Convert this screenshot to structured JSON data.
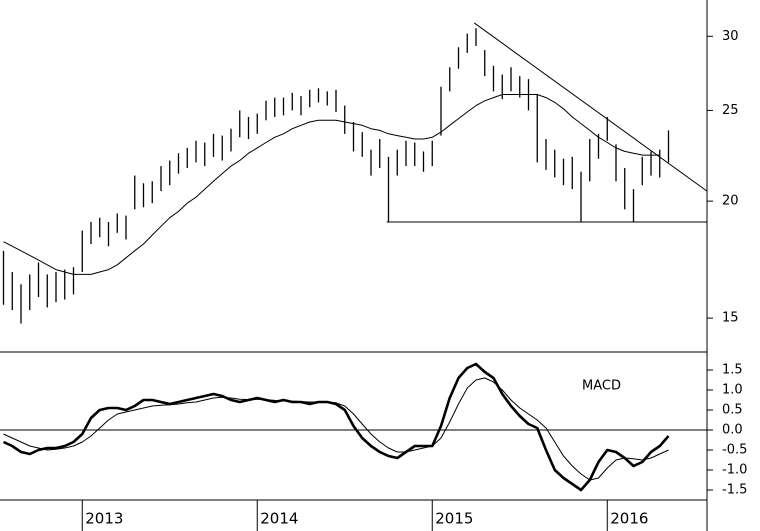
{
  "chart_data": [
    {
      "type": "hilo",
      "log_scale": true,
      "color": "#000000",
      "x": [
        2012.55,
        2012.6,
        2012.65,
        2012.7,
        2012.75,
        2012.8,
        2012.85,
        2012.9,
        2012.95,
        2013.0,
        2013.05,
        2013.1,
        2013.15,
        2013.2,
        2013.25,
        2013.3,
        2013.35,
        2013.4,
        2013.45,
        2013.5,
        2013.55,
        2013.6,
        2013.65,
        2013.7,
        2013.75,
        2013.8,
        2013.85,
        2013.9,
        2013.95,
        2014.0,
        2014.05,
        2014.1,
        2014.15,
        2014.2,
        2014.25,
        2014.3,
        2014.35,
        2014.4,
        2014.45,
        2014.5,
        2014.55,
        2014.6,
        2014.65,
        2014.7,
        2014.75,
        2014.8,
        2014.85,
        2014.9,
        2014.95,
        2015.0,
        2015.05,
        2015.1,
        2015.15,
        2015.2,
        2015.25,
        2015.3,
        2015.35,
        2015.4,
        2015.45,
        2015.5,
        2015.55,
        2015.6,
        2015.65,
        2015.7,
        2015.75,
        2015.8,
        2015.85,
        2015.9,
        2015.95,
        2016.0,
        2016.05,
        2016.1,
        2016.15,
        2016.2,
        2016.25,
        2016.3,
        2016.35
      ],
      "high": [
        17.7,
        16.8,
        16.3,
        16.7,
        17.2,
        16.7,
        16.8,
        16.9,
        17.0,
        18.6,
        19.0,
        19.2,
        19.0,
        19.4,
        19.3,
        21.3,
        20.9,
        21.0,
        21.8,
        22.1,
        22.5,
        22.8,
        23.2,
        23.1,
        23.6,
        23.5,
        23.9,
        25.0,
        24.6,
        24.8,
        25.6,
        25.8,
        25.8,
        26.1,
        25.9,
        26.3,
        26.4,
        26.2,
        26.3,
        25.3,
        24.3,
        23.7,
        22.7,
        23.3,
        22.3,
        22.7,
        23.2,
        23.1,
        22.6,
        23.2,
        26.5,
        27.8,
        29.2,
        30.2,
        30.6,
        29.0,
        27.9,
        27.3,
        27.8,
        27.2,
        27.0,
        26.0,
        23.3,
        22.7,
        22.2,
        22.3,
        21.5,
        23.3,
        23.6,
        24.6,
        23.0,
        21.7,
        20.6,
        22.3,
        22.6,
        22.7,
        23.8
      ],
      "low": [
        15.5,
        15.3,
        14.8,
        15.3,
        15.8,
        15.4,
        15.6,
        15.7,
        15.9,
        16.8,
        18.0,
        18.3,
        17.9,
        18.5,
        18.2,
        19.6,
        19.7,
        19.9,
        20.5,
        20.8,
        21.4,
        21.7,
        22.0,
        21.8,
        22.3,
        22.1,
        22.6,
        23.4,
        23.3,
        23.6,
        24.4,
        24.6,
        24.7,
        25.0,
        24.7,
        25.2,
        25.5,
        25.3,
        24.9,
        23.6,
        22.6,
        22.3,
        21.3,
        21.7,
        19.0,
        21.3,
        21.8,
        21.8,
        21.5,
        21.8,
        23.5,
        26.2,
        27.7,
        28.8,
        29.3,
        27.2,
        26.2,
        25.7,
        26.2,
        25.8,
        25.0,
        22.0,
        21.6,
        21.2,
        20.8,
        20.6,
        19.0,
        21.0,
        22.2,
        23.2,
        21.0,
        19.6,
        19.0,
        20.8,
        21.3,
        21.2,
        22.0
      ],
      "ma": [
        18.1,
        17.9,
        17.7,
        17.5,
        17.3,
        17.1,
        16.9,
        16.8,
        16.7,
        16.7,
        16.7,
        16.8,
        16.9,
        17.1,
        17.4,
        17.7,
        18.0,
        18.4,
        18.8,
        19.2,
        19.5,
        19.9,
        20.2,
        20.6,
        21.0,
        21.4,
        21.8,
        22.1,
        22.5,
        22.8,
        23.1,
        23.4,
        23.6,
        23.9,
        24.1,
        24.3,
        24.4,
        24.4,
        24.4,
        24.3,
        24.2,
        24.1,
        23.9,
        23.8,
        23.6,
        23.5,
        23.4,
        23.3,
        23.3,
        23.4,
        23.7,
        24.1,
        24.5,
        24.9,
        25.3,
        25.6,
        25.8,
        26.0,
        26.0,
        26.0,
        26.0,
        26.0,
        25.8,
        25.5,
        25.1,
        24.6,
        24.2,
        23.8,
        23.4,
        23.1,
        22.8,
        22.6,
        22.5,
        22.4,
        22.4,
        22.4,
        null
      ],
      "trendlines": [
        {
          "x": [
            2015.24,
            2016.57
          ],
          "y": [
            31.0,
            20.5
          ]
        },
        {
          "x": [
            2014.74,
            2016.57
          ],
          "y": [
            19.0,
            19.0
          ]
        }
      ],
      "xlim": [
        2012.53,
        2016.57
      ],
      "xticks": [
        2013,
        2014,
        2015,
        2016
      ],
      "ylim": [
        13.8,
        32.8
      ],
      "yticks": [
        15,
        20,
        25,
        30
      ]
    },
    {
      "type": "line",
      "title": "MACD",
      "series": [
        {
          "color": "#000000",
          "width": 2.6,
          "values": [
            -0.3,
            -0.4,
            -0.55,
            -0.6,
            -0.5,
            -0.45,
            -0.45,
            -0.4,
            -0.3,
            -0.1,
            0.3,
            0.5,
            0.55,
            0.55,
            0.5,
            0.6,
            0.75,
            0.75,
            0.7,
            0.65,
            0.7,
            0.75,
            0.8,
            0.85,
            0.9,
            0.85,
            0.75,
            0.7,
            0.75,
            0.8,
            0.75,
            0.7,
            0.75,
            0.7,
            0.7,
            0.65,
            0.7,
            0.7,
            0.65,
            0.5,
            0.1,
            -0.2,
            -0.4,
            -0.55,
            -0.65,
            -0.7,
            -0.55,
            -0.4,
            -0.4,
            -0.4,
            0.1,
            0.8,
            1.3,
            1.55,
            1.65,
            1.45,
            1.3,
            0.9,
            0.6,
            0.35,
            0.15,
            0.05,
            -0.5,
            -1.0,
            -1.2,
            -1.35,
            -1.5,
            -1.25,
            -0.8,
            -0.5,
            -0.55,
            -0.7,
            -0.9,
            -0.8,
            -0.55,
            -0.4,
            -0.15
          ]
        },
        {
          "color": "#000000",
          "width": 1,
          "values": [
            -0.1,
            -0.2,
            -0.3,
            -0.4,
            -0.45,
            -0.5,
            -0.48,
            -0.45,
            -0.4,
            -0.3,
            -0.15,
            0.05,
            0.25,
            0.4,
            0.45,
            0.5,
            0.55,
            0.6,
            0.62,
            0.63,
            0.65,
            0.68,
            0.7,
            0.75,
            0.8,
            0.82,
            0.8,
            0.77,
            0.76,
            0.77,
            0.76,
            0.74,
            0.73,
            0.72,
            0.71,
            0.7,
            0.7,
            0.7,
            0.68,
            0.6,
            0.4,
            0.15,
            -0.1,
            -0.3,
            -0.45,
            -0.55,
            -0.55,
            -0.5,
            -0.45,
            -0.4,
            -0.2,
            0.2,
            0.65,
            1.05,
            1.25,
            1.3,
            1.2,
            1.0,
            0.75,
            0.55,
            0.4,
            0.25,
            0.05,
            -0.3,
            -0.65,
            -0.9,
            -1.1,
            -1.25,
            -1.2,
            -0.95,
            -0.75,
            -0.7,
            -0.72,
            -0.75,
            -0.7,
            -0.6,
            -0.5
          ]
        }
      ],
      "hline": 0,
      "ylim": [
        -1.75,
        1.95
      ],
      "yticks": [
        1.5,
        {
          "value": 1,
          "label": "1.0"
        },
        0.5,
        {
          "value": 0,
          "label": "0.0"
        },
        -0.5,
        {
          "value": -1,
          "label": "-1.0"
        },
        -1.5
      ]
    }
  ]
}
